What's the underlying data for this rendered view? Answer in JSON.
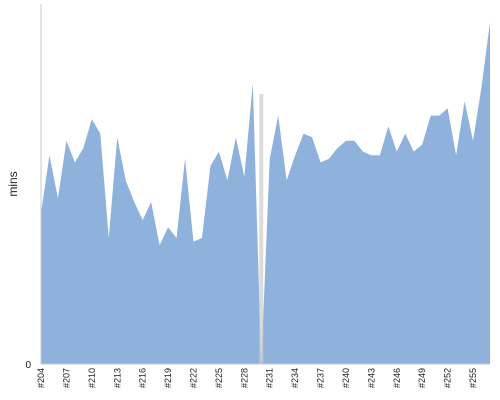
{
  "chart_data": {
    "type": "area",
    "title": "",
    "xlabel": "",
    "ylabel": "mins",
    "grid": false,
    "legend": "none",
    "colors": {
      "area": "#8fb2dc",
      "axis": "#c8c8c8",
      "gap": "#cccccc"
    },
    "ylim": [
      0,
      100
    ],
    "y_tick_labels": [
      "0"
    ],
    "x_tick_labels": [
      "#204",
      "#207",
      "#210",
      "#213",
      "#216",
      "#219",
      "#222",
      "#225",
      "#228",
      "#231",
      "#234",
      "#237",
      "#240",
      "#243",
      "#246",
      "#249",
      "#252",
      "#255"
    ],
    "x_tick_every": 3,
    "x": [
      204,
      205,
      206,
      207,
      208,
      209,
      210,
      211,
      212,
      213,
      214,
      215,
      216,
      217,
      218,
      219,
      220,
      221,
      222,
      223,
      224,
      225,
      226,
      227,
      228,
      229,
      230,
      231,
      232,
      233,
      234,
      235,
      236,
      237,
      238,
      239,
      240,
      241,
      242,
      243,
      244,
      245,
      246,
      247,
      248,
      249,
      250,
      251,
      252,
      253,
      254,
      255,
      256,
      257
    ],
    "values": [
      42,
      58,
      46,
      62,
      56,
      60,
      68,
      64,
      35,
      63,
      51,
      45,
      40,
      45,
      33,
      38,
      35,
      57,
      34,
      35,
      55,
      59,
      51,
      63,
      52,
      78,
      0,
      57,
      69,
      51,
      58,
      64,
      63,
      56,
      57,
      60,
      62,
      62,
      59,
      58,
      58,
      66,
      59,
      64,
      59,
      61,
      69,
      69,
      71,
      58,
      73,
      62,
      77,
      95
    ],
    "gap_x": 230
  }
}
